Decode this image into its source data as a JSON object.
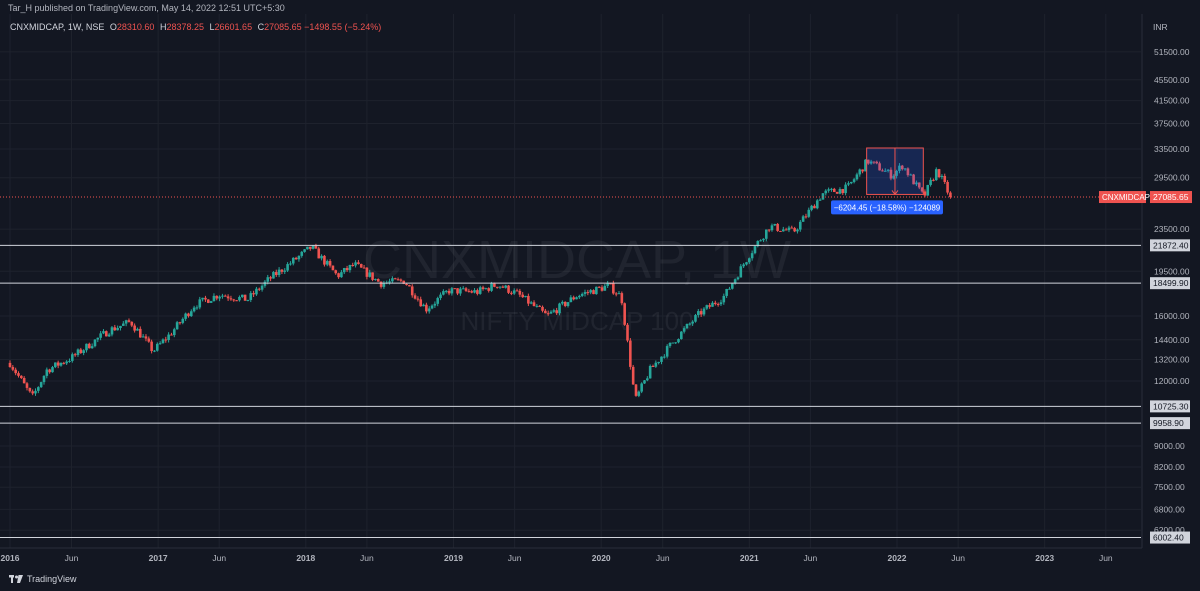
{
  "header": {
    "published": "Tar_H published on TradingView.com, May 14, 2022 12:51 UTC+5:30"
  },
  "legend": {
    "symbol": "CNXMIDCAP, 1W, NSE",
    "o_label": "O",
    "o": "28310.60",
    "h_label": "H",
    "h": "28378.25",
    "l_label": "L",
    "l": "26601.65",
    "c_label": "C",
    "c": "27085.65",
    "change": "−1498.55 (−5.24%)"
  },
  "watermark": {
    "main": "CNXMIDCAP, 1W",
    "sub": "NIFTY MIDCAP 100"
  },
  "footer": {
    "brand": "TradingView"
  },
  "colors": {
    "bg": "#131722",
    "up": "#26a69a",
    "down": "#ef5350",
    "grid": "#1e222d",
    "axis_text": "#b2b5be",
    "measure": "#2962ff"
  },
  "chart_data": {
    "type": "candlestick",
    "scale": "log",
    "ylim": [
      5600,
      57000
    ],
    "y_unit": "INR",
    "y_ticks": [
      51500,
      45500,
      41500,
      37500,
      33500,
      29500,
      23500,
      19500,
      16000,
      14400,
      13200,
      12000,
      9000,
      8200,
      7500,
      6800,
      6200
    ],
    "x_ticks": [
      {
        "label": "2016",
        "date": "2016-01-01"
      },
      {
        "label": "Jun",
        "date": "2016-06-01"
      },
      {
        "label": "2017",
        "date": "2017-01-01"
      },
      {
        "label": "Jun",
        "date": "2017-06-01"
      },
      {
        "label": "2018",
        "date": "2018-01-01"
      },
      {
        "label": "Jun",
        "date": "2018-06-01"
      },
      {
        "label": "2019",
        "date": "2019-01-01"
      },
      {
        "label": "Jun",
        "date": "2019-06-01"
      },
      {
        "label": "2020",
        "date": "2020-01-01"
      },
      {
        "label": "Jun",
        "date": "2020-06-01"
      },
      {
        "label": "2021",
        "date": "2021-01-01"
      },
      {
        "label": "Jun",
        "date": "2021-06-01"
      },
      {
        "label": "2022",
        "date": "2022-01-01"
      },
      {
        "label": "Jun",
        "date": "2022-06-01"
      },
      {
        "label": "2023",
        "date": "2023-01-01"
      },
      {
        "label": "Jun",
        "date": "2023-06-01"
      }
    ],
    "price_path": [
      [
        "2016-01-01",
        13000
      ],
      [
        "2016-02-25",
        11150
      ],
      [
        "2016-04-01",
        12600
      ],
      [
        "2016-06-01",
        13300
      ],
      [
        "2016-09-01",
        15000
      ],
      [
        "2016-10-25",
        15600
      ],
      [
        "2016-12-20",
        13700
      ],
      [
        "2017-02-01",
        14800
      ],
      [
        "2017-04-01",
        16800
      ],
      [
        "2017-06-01",
        17600
      ],
      [
        "2017-08-10",
        17200
      ],
      [
        "2017-10-01",
        18800
      ],
      [
        "2018-01-15",
        21700
      ],
      [
        "2018-03-20",
        19100
      ],
      [
        "2018-05-01",
        20100
      ],
      [
        "2018-07-05",
        18500
      ],
      [
        "2018-09-01",
        18700
      ],
      [
        "2018-10-25",
        16500
      ],
      [
        "2018-12-20",
        17900
      ],
      [
        "2019-03-01",
        17800
      ],
      [
        "2019-04-20",
        18400
      ],
      [
        "2019-06-10",
        17600
      ],
      [
        "2019-08-20",
        16000
      ],
      [
        "2019-11-01",
        17500
      ],
      [
        "2020-01-20",
        18300
      ],
      [
        "2020-02-20",
        17400
      ],
      [
        "2020-03-25",
        11000
      ],
      [
        "2020-05-01",
        12600
      ],
      [
        "2020-07-01",
        14400
      ],
      [
        "2020-09-01",
        16200
      ],
      [
        "2020-11-01",
        17500
      ],
      [
        "2021-01-01",
        21000
      ],
      [
        "2021-02-20",
        23800
      ],
      [
        "2021-04-20",
        23200
      ],
      [
        "2021-07-01",
        27500
      ],
      [
        "2021-09-01",
        28200
      ],
      [
        "2021-10-20",
        31800
      ],
      [
        "2021-12-20",
        29800
      ],
      [
        "2022-01-15",
        31200
      ],
      [
        "2022-03-08",
        27100
      ],
      [
        "2022-04-10",
        30600
      ],
      [
        "2022-05-13",
        27085.65
      ]
    ],
    "horizontal_levels": [
      21872.4,
      18499.9,
      10725.3,
      9958.9,
      6002.4
    ],
    "last_price": {
      "label": "CNXMIDCAP",
      "value": "27085.65"
    },
    "measure": {
      "start_date": "2021-10-18",
      "end_date": "2022-03-07",
      "high": 33650,
      "low": 27400,
      "label": "−6204.45 (−18.58%) −124089"
    }
  }
}
